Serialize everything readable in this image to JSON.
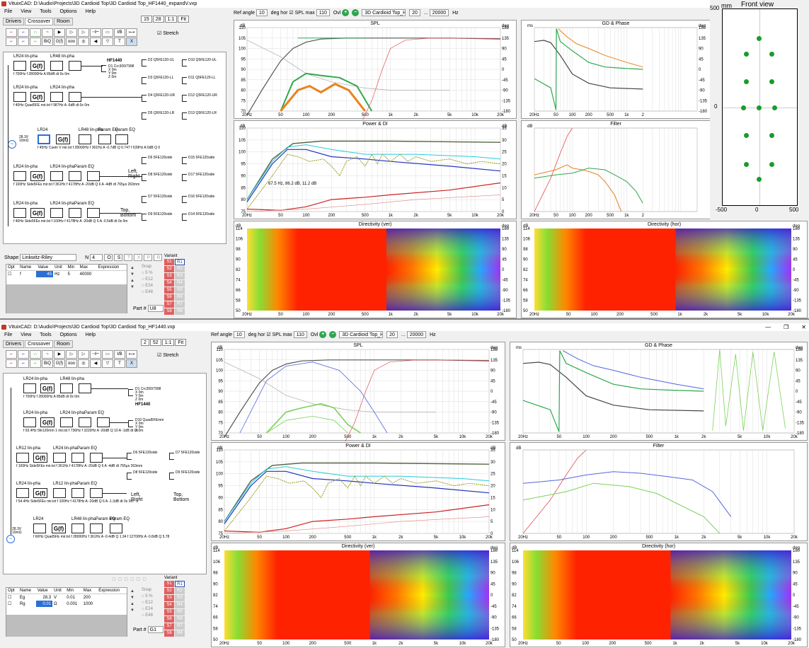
{
  "window1": {
    "title": "VituixCAD: D:\\Audio\\Projects\\3D Cardioid Top\\3D Cardioid Top_HF1440_expandV.vxp",
    "menu": [
      "File",
      "View",
      "Tools",
      "Options",
      "Help"
    ],
    "tabs": [
      "Drivers",
      "Crossover",
      "Room"
    ],
    "active_tab": "Crossover",
    "zoom_buttons": [
      "15",
      "28",
      "1:1",
      "Fit"
    ],
    "stretch_label": "Stretch",
    "ref_angle_label": "Ref angle",
    "ref_angle": "10",
    "deg_hor_label": "deg hor",
    "spl_max_label": "SPL max",
    "spl_max": "110",
    "ovl_label": "Ovl",
    "project_select": "3D Cardioid Top_HF144",
    "freq_min": "20",
    "freq_sep": "...",
    "freq_max": "20000",
    "freq_unit": "Hz",
    "shape_label": "Shape",
    "shape_value": "Linkwitz-Riley",
    "n_label": "N",
    "n_value": "4",
    "shape_buttons": [
      "O",
      "S",
      "T",
      "X",
      "P",
      "R"
    ],
    "params_header": [
      "Opt",
      "Name",
      "Value",
      "Unit",
      "Min",
      "Max",
      "Expression"
    ],
    "params": [
      {
        "name": "f",
        "value": "45",
        "unit": "Hz",
        "min": "5",
        "max": "40000",
        "expr": ""
      }
    ],
    "variant_label": "Variant",
    "variants_s": [
      "S1",
      "S2",
      "S3",
      "S4",
      "S5",
      "S6",
      "S7",
      "S8"
    ],
    "variants_r": [
      "R1",
      "R2",
      "R3",
      "R4",
      "R5",
      "R6",
      "R7",
      "R8"
    ],
    "snap_label": "Snap",
    "snap_options": [
      "5 %",
      "E12",
      "E24",
      "E48"
    ],
    "part_label": "Part #",
    "part_value": "U8",
    "schematic": {
      "hf_name": "HF1440",
      "blocks_row1": [
        "LR24 lin-pha",
        "LR48 lin-pha"
      ],
      "row1_params": "f 700Hz      f 28000Hz A 85dB  dt 0s  0m",
      "d1_label": "D1 Crc300/7998\nX 0m\nY 0m\nZ 0m",
      "row2_labels": [
        "LR24 lin-pha",
        "LR24 lin-pha"
      ],
      "row2_params": "f 40Hz   Quad5FE mir.txt   f 987Hz   A -6dB  dt 0s 0m",
      "row3_labels": [
        "LR24",
        "LR48 lin-pha",
        "Param EQ",
        "Param EQ"
      ],
      "row3_params": "f 45Hz   Cuein V mir.txt   f 28000Hz   f 361Hz A -0.7dB Q 0.747   f 639Hz A 0dB Q 0",
      "gen_label": "28.3V\n10mΩ",
      "row4_labels": [
        "LR24 lin-pha",
        "LR24 lin-phaParam EQ"
      ],
      "row4_params": "f 100Hz  Side5FEs mir.txt  f 361Hz  f 4178Hz A -20dB Q 6  A -4dB dt 765μs 263mm",
      "row5_labels": [
        "LR24 lin-pha",
        "LR24 lin-phaParam EQ"
      ],
      "row5_params": "f 40Hz  Side5FEs mir.txt  f 100Hz  f 4178Hz A -20dB Q 6  A -0.5dB dt 0s 0m",
      "left_right": "Left,\nRight",
      "top_bottom": "Top,\nBottom",
      "drivers_col1": [
        "D2 Q5FE120-UL",
        "D3 Q5FE120-LL",
        "D4 Q5FE120-UR",
        "D5 Q5FE120-LR"
      ],
      "drivers_col2": [
        "D10 Q5FE120-UL",
        "D11 Q5FE120-LL",
        "D12 Q5FE120-UR",
        "D13 Q5FE120-LR"
      ],
      "drivers_col3": [
        "D6 5FE120side",
        "D8 5FE120side",
        "D7 5FE120side",
        "D9 5FE120side"
      ],
      "drivers_col4": [
        "D15 5FE120side",
        "D17 5FE120side",
        "D16 5FE120side",
        "D14 5FE120side"
      ]
    },
    "charts": {
      "spl_title": "SPL",
      "gd_title": "GD & Phase",
      "power_title": "Power & DI",
      "filter_title": "Filter",
      "dir_ver_title": "Directivity (ver)",
      "dir_hor_title": "Directivity (hor)",
      "power_note": "67.5 Hz, 86.2 dB, 11.2 dB",
      "db": "dB",
      "deg": "deg",
      "ms": "ms",
      "x_ticks": [
        "20Hz",
        "50",
        "100",
        "200",
        "500",
        "1k",
        "2k",
        "5k",
        "10k",
        "20k"
      ],
      "x_ticks_short": [
        "20Hz",
        "50",
        "100",
        "200",
        "500",
        "1k",
        "2"
      ],
      "spl_y": [
        "110",
        "105",
        "100",
        "95",
        "90",
        "85",
        "80",
        "75",
        "70"
      ],
      "phase_y": [
        "180",
        "135",
        "90",
        "45",
        "0",
        "-45",
        "-90",
        "-135",
        "-180"
      ],
      "power_y": [
        "110",
        "105",
        "100",
        "95",
        "90",
        "85",
        "80",
        "75"
      ],
      "di_y": [
        "35",
        "30",
        "25",
        "20",
        "15",
        "10",
        "5",
        "0"
      ],
      "dir_y": [
        "114",
        "106",
        "98",
        "90",
        "82",
        "74",
        "66",
        "58",
        "50"
      ]
    },
    "front_view": {
      "title": "Front view",
      "unit": "mm",
      "x_ticks": [
        "-500",
        "0",
        "500"
      ],
      "y_ticks": [
        "500",
        "0"
      ]
    }
  },
  "window2": {
    "title": "VituixCAD: D:\\Audio\\Projects\\3D Cardioid Top\\3D Cardioid Top_HF1440.vxp",
    "zoom_buttons": [
      "2",
      "52",
      "1:1",
      "Fit"
    ],
    "params": [
      {
        "name": "Eg",
        "value": "28.3",
        "unit": "V",
        "min": "0.01",
        "max": "200",
        "expr": ""
      },
      {
        "name": "Rg",
        "value": "0.01",
        "unit": "Ω",
        "min": "0.001",
        "max": "1000",
        "expr": ""
      }
    ],
    "part_value": "G1",
    "schematic": {
      "hf_name": "HF1440",
      "row1_labels": [
        "LR24 lin-pha",
        "LR48 lin-pha"
      ],
      "row1_params": "f 700Hz     f 28000Hz A 85dB  dt 0s  0m",
      "d1_label": "D1 Crc300/7998\nX 0m\nY 0m\nZ 0m",
      "row2_labels": [
        "LR24 lin-pha",
        "LR24 lin-phaParam EQ"
      ],
      "row2_params": "f 93.4Hz  5fe120mm 1 mir.txt  f 736Hz  f 3220Hz A -20dB Q 10  A -1dB dt 0s",
      "d10_label": "D10 Quad5FEmm\nX 0m\nY 0m\nZ 0m",
      "row3_labels": [
        "LR12 lin-pha",
        "LR24 lin-phaParam EQ"
      ],
      "row3_params": "f 100Hz  Side5FEs mir.txt  f 361Hz  f 4178Hz A -20dB Q 6  A -4dB dt 765μs 263mm",
      "row4_labels": [
        "LR24 lin-pha",
        "LR12 lin-phaParam EQ"
      ],
      "row4_params": "f 54.4Hz  Side5FEs mir.txt  f 100Hz  f 4178Hz A -20dB Q 6  A -1.3dB dt 0s 0m",
      "row5_labels": [
        "LR24",
        "LR48 lin-phaParam EQ",
        "Param EQ"
      ],
      "row5_params": "f 60Hz  Quad5FE mir.txt  f 28000Hz  f 361Hz A -0.4dB Q 1.34  f 12700Hz A -0.8dB Q 5.78",
      "gen_label": "28.3V\n10mΩ",
      "left_right": "Left,\nRight",
      "top_bottom": "Top,\nBottom",
      "drivers_a": [
        "D6 5FE120side",
        "D8 5FE120side"
      ],
      "drivers_b": [
        "D7 5FE120side",
        "D9 5FE120side"
      ]
    }
  }
}
